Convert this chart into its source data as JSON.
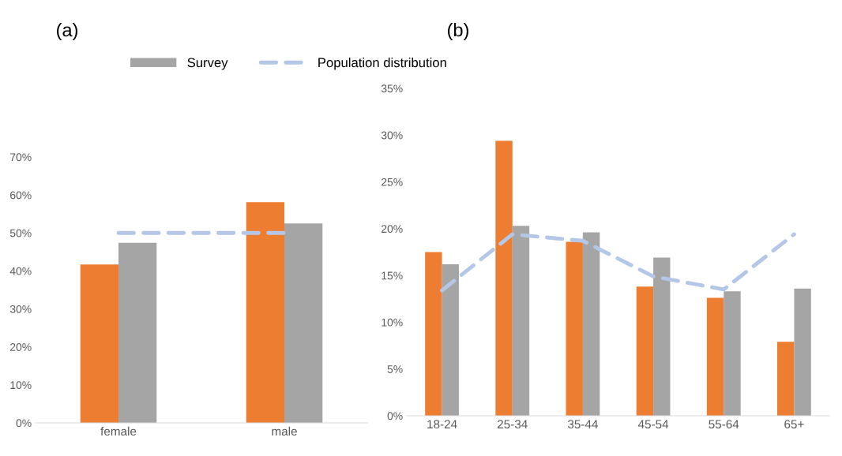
{
  "chart_data": [
    {
      "type": "bar",
      "title": "(a)",
      "categories": [
        "female",
        "male"
      ],
      "ylim": [
        0,
        70
      ],
      "yticks": [
        {
          "value": 0,
          "label": "0%"
        },
        {
          "value": 10,
          "label": "10%"
        },
        {
          "value": 20,
          "label": "20%"
        },
        {
          "value": 30,
          "label": "30%"
        },
        {
          "value": 40,
          "label": "40%"
        },
        {
          "value": 50,
          "label": "50%"
        },
        {
          "value": 60,
          "label": "60%"
        },
        {
          "value": 70,
          "label": "70%"
        }
      ],
      "series": [
        {
          "color": "#ed7d31",
          "values": [
            41.7,
            58.1
          ]
        },
        {
          "color": "#a5a5a5",
          "values": [
            47.4,
            52.5
          ]
        },
        {
          "type": "line",
          "line_style": "dashed",
          "color": "#b4c7e7",
          "values": [
            50.0,
            50.0
          ]
        }
      ]
    },
    {
      "type": "bar",
      "title": "(b)",
      "categories": [
        "18-24",
        "25-34",
        "35-44",
        "45-54",
        "55-64",
        "65+"
      ],
      "legend": "top",
      "ylim": [
        0,
        35
      ],
      "yticks": [
        {
          "value": 0,
          "label": "0%"
        },
        {
          "value": 5,
          "label": "5%"
        },
        {
          "value": 10,
          "label": "10%"
        },
        {
          "value": 15,
          "label": "15%"
        },
        {
          "value": 20,
          "label": "20%"
        },
        {
          "value": 25,
          "label": "25%"
        },
        {
          "value": 30,
          "label": "30%"
        },
        {
          "value": 35,
          "label": "35%"
        }
      ],
      "series": [
        {
          "color": "#ed7d31",
          "values": [
            17.5,
            29.4,
            18.6,
            13.8,
            12.6,
            7.9
          ]
        },
        {
          "name": "Survey",
          "color": "#a5a5a5",
          "values": [
            16.2,
            20.3,
            19.6,
            16.9,
            13.3,
            13.6
          ]
        },
        {
          "name": "Population distribution",
          "type": "line",
          "line_style": "dashed",
          "color": "#b4c7e7",
          "values": [
            13.4,
            19.4,
            18.7,
            14.9,
            13.5,
            19.4
          ]
        }
      ]
    }
  ]
}
